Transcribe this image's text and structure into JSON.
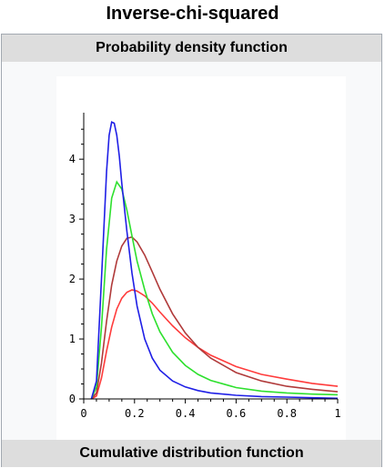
{
  "page": {
    "title": "Inverse-chi-squared",
    "pdf_header": "Probability density function",
    "cdf_header": "Cumulative distribution function"
  },
  "chart_data": {
    "type": "line",
    "title": "",
    "xlabel": "",
    "ylabel": "",
    "xlim": [
      0,
      1
    ],
    "ylim": [
      0,
      4.7
    ],
    "x_ticks": [
      0,
      0.2,
      0.4,
      0.6,
      0.8,
      1
    ],
    "x_tick_labels": [
      "0",
      "0.2",
      "0.4",
      "0.6",
      "0.8",
      "1"
    ],
    "y_ticks": [
      0,
      1,
      2,
      3,
      4
    ],
    "y_tick_labels": [
      "0",
      "1",
      "2",
      "3",
      "4"
    ],
    "grid": false,
    "series": [
      {
        "color": "#ff3b3b",
        "x": [
          0.03,
          0.05,
          0.07,
          0.09,
          0.11,
          0.13,
          0.15,
          0.17,
          0.19,
          0.21,
          0.24,
          0.27,
          0.3,
          0.35,
          0.4,
          0.45,
          0.5,
          0.6,
          0.7,
          0.8,
          0.9,
          1.0
        ],
        "y": [
          0.0,
          0.05,
          0.35,
          0.8,
          1.2,
          1.5,
          1.68,
          1.78,
          1.82,
          1.8,
          1.72,
          1.6,
          1.45,
          1.22,
          1.02,
          0.86,
          0.73,
          0.54,
          0.41,
          0.33,
          0.26,
          0.21
        ]
      },
      {
        "color": "#b03a3a",
        "x": [
          0.03,
          0.05,
          0.07,
          0.09,
          0.11,
          0.13,
          0.15,
          0.17,
          0.19,
          0.21,
          0.24,
          0.27,
          0.3,
          0.35,
          0.4,
          0.45,
          0.5,
          0.6,
          0.7,
          0.8,
          0.9,
          1.0
        ],
        "y": [
          0.0,
          0.1,
          0.6,
          1.3,
          1.9,
          2.3,
          2.55,
          2.68,
          2.7,
          2.62,
          2.4,
          2.12,
          1.83,
          1.42,
          1.1,
          0.86,
          0.68,
          0.44,
          0.3,
          0.21,
          0.16,
          0.12
        ]
      },
      {
        "color": "#2ee02e",
        "x": [
          0.03,
          0.05,
          0.07,
          0.09,
          0.11,
          0.13,
          0.15,
          0.17,
          0.19,
          0.21,
          0.24,
          0.27,
          0.3,
          0.35,
          0.4,
          0.45,
          0.5,
          0.6,
          0.7,
          0.8,
          0.9,
          1.0
        ],
        "y": [
          0.0,
          0.2,
          1.2,
          2.5,
          3.35,
          3.62,
          3.5,
          3.15,
          2.72,
          2.3,
          1.82,
          1.42,
          1.12,
          0.78,
          0.56,
          0.41,
          0.31,
          0.19,
          0.13,
          0.1,
          0.08,
          0.07
        ]
      },
      {
        "color": "#1f1fe6",
        "x": [
          0.03,
          0.05,
          0.07,
          0.09,
          0.1,
          0.11,
          0.12,
          0.13,
          0.14,
          0.15,
          0.17,
          0.19,
          0.21,
          0.24,
          0.27,
          0.3,
          0.35,
          0.4,
          0.45,
          0.5,
          0.6,
          0.7,
          0.8,
          0.9,
          1.0
        ],
        "y": [
          0.0,
          0.3,
          2.0,
          3.8,
          4.4,
          4.62,
          4.6,
          4.4,
          4.05,
          3.6,
          2.8,
          2.1,
          1.55,
          1.0,
          0.68,
          0.48,
          0.3,
          0.2,
          0.14,
          0.1,
          0.06,
          0.04,
          0.03,
          0.02,
          0.01
        ]
      }
    ]
  }
}
